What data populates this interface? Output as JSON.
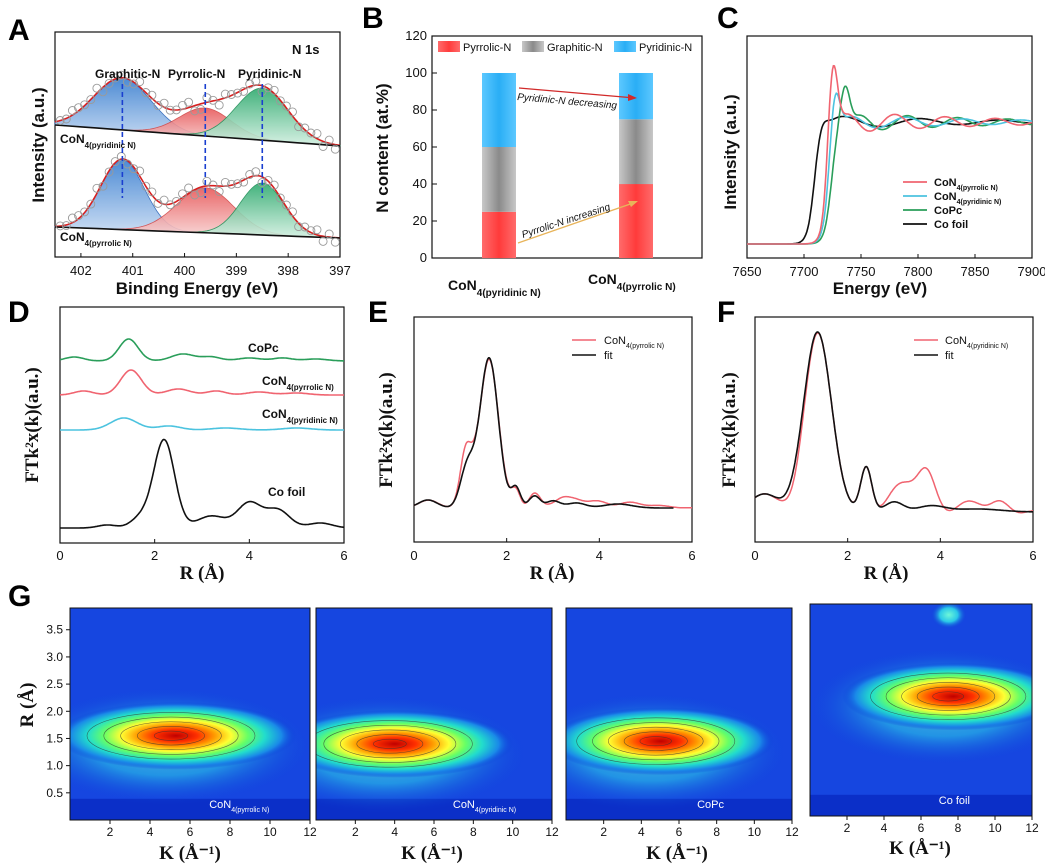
{
  "panels": {
    "A": {
      "letter": "A",
      "title": "N 1s",
      "xlabel": "Binding Energy (eV)",
      "ylabel": "Intensity (a.u.)",
      "xticks": [
        "402",
        "401",
        "400",
        "399",
        "398",
        "397"
      ],
      "peak_labels": [
        "Graphitic-N",
        "Pyrrolic-N",
        "Pyridinic-N"
      ],
      "sample_top": {
        "base": "CoN",
        "sub": "4(pyridinic N)"
      },
      "sample_bottom": {
        "base": "CoN",
        "sub": "4(pyrrolic N)"
      }
    },
    "B": {
      "letter": "B",
      "ylabel": "N content (at.%)",
      "yticks": [
        "0",
        "20",
        "40",
        "60",
        "80",
        "100",
        "120"
      ],
      "legend": [
        "Pyrrolic-N",
        "Graphitic-N",
        "Pyridinic-N"
      ],
      "annotation_top": "Pyridinic-N decreasing",
      "annotation_bottom": "Pyrrolic-N increasing",
      "cat1": {
        "base": "CoN",
        "sub": "4(pyridinic N)"
      },
      "cat2": {
        "base": "CoN",
        "sub": "4(pyrrolic N)"
      }
    },
    "C": {
      "letter": "C",
      "xlabel": "Energy (eV)",
      "ylabel": "Intensity (a.u.)",
      "xticks": [
        "7650",
        "7700",
        "7750",
        "7800",
        "7850",
        "7900"
      ],
      "legend": [
        {
          "base": "CoN",
          "sub": "4(pyrrolic N)",
          "color": "#f06470"
        },
        {
          "base": "CoN",
          "sub": "4(pyridinic N)",
          "color": "#4cc3df"
        },
        {
          "base": "CoPc",
          "sub": "",
          "color": "#2a9e5a"
        },
        {
          "base": "Co foil",
          "sub": "",
          "color": "#111111"
        }
      ]
    },
    "D": {
      "letter": "D",
      "xlabel": "R (Å)",
      "ylabel": "FTk²x(k)(a.u.)",
      "xticks": [
        "0",
        "2",
        "4",
        "6"
      ],
      "labels": [
        {
          "base": "CoPc",
          "sub": ""
        },
        {
          "base": "CoN",
          "sub": "4(pyrrolic N)"
        },
        {
          "base": "CoN",
          "sub": "4(pyridinic N)"
        },
        {
          "base": "Co foil",
          "sub": ""
        }
      ]
    },
    "E": {
      "letter": "E",
      "xlabel": "R (Å)",
      "ylabel": "FTk²x(k)(a.u.)",
      "xticks": [
        "0",
        "2",
        "4",
        "6"
      ],
      "legend": [
        {
          "base": "CoN",
          "sub": "4(pyrrolic N)"
        },
        {
          "base": "fit",
          "sub": ""
        }
      ]
    },
    "F": {
      "letter": "F",
      "xlabel": "R (Å)",
      "ylabel": "FTk²x(k)(a.u.)",
      "xticks": [
        "0",
        "2",
        "4",
        "6"
      ],
      "legend": [
        {
          "base": "CoN",
          "sub": "4(pyridinic N)"
        },
        {
          "base": "fit",
          "sub": ""
        }
      ]
    },
    "G": {
      "letter": "G",
      "xlabel": "K (Å⁻¹)",
      "ylabel": "R (Å)",
      "xticks": [
        "2",
        "4",
        "6",
        "8",
        "10",
        "12"
      ],
      "yticks": [
        "0.5",
        "1.0",
        "1.5",
        "2.0",
        "2.5",
        "3.0",
        "3.5"
      ],
      "maps": [
        {
          "base": "CoN",
          "sub": "4(pyrrolic N)"
        },
        {
          "base": "CoN",
          "sub": "4(pyridinic N)"
        },
        {
          "base": "CoPc",
          "sub": ""
        },
        {
          "base": "Co foil",
          "sub": ""
        }
      ]
    }
  },
  "chart_data": [
    {
      "type": "line",
      "panel": "A",
      "xlabel": "Binding Energy (eV)",
      "ylabel": "Intensity (a.u.)",
      "xlim": [
        402.5,
        397
      ],
      "series": [
        {
          "name": "Graphitic-N",
          "peak_center": 401.2
        },
        {
          "name": "Pyrrolic-N",
          "peak_center": 399.6
        },
        {
          "name": "Pyridinic-N",
          "peak_center": 398.5
        }
      ]
    },
    {
      "type": "bar",
      "panel": "B",
      "categories": [
        "CoN4(pyridinic N)",
        "CoN4(pyrrolic N)"
      ],
      "ylabel": "N content (at.%)",
      "ylim": [
        0,
        120
      ],
      "series": [
        {
          "name": "Pyrrolic-N",
          "values": [
            25,
            40
          ]
        },
        {
          "name": "Graphitic-N",
          "values": [
            35,
            35
          ]
        },
        {
          "name": "Pyridinic-N",
          "values": [
            40,
            25
          ]
        }
      ]
    },
    {
      "type": "line",
      "panel": "C",
      "xlabel": "Energy (eV)",
      "xlim": [
        7650,
        7900
      ],
      "series": [
        {
          "name": "CoN4(pyrrolic N)",
          "edge": 7722,
          "white_line": 7725
        },
        {
          "name": "CoN4(pyridinic N)",
          "edge": 7722,
          "white_line": 7726
        },
        {
          "name": "CoPc",
          "edge": 7724,
          "white_line": 7735
        },
        {
          "name": "Co foil",
          "edge": 7709
        }
      ]
    },
    {
      "type": "line",
      "panel": "D",
      "xlabel": "R (Å)",
      "xlim": [
        0,
        6
      ],
      "series": [
        {
          "name": "CoPc",
          "main_peak_R": 1.5
        },
        {
          "name": "CoN4(pyrrolic N)",
          "main_peak_R": 1.5
        },
        {
          "name": "CoN4(pyridinic N)",
          "main_peak_R": 1.4
        },
        {
          "name": "Co foil",
          "main_peak_R": 2.2
        }
      ]
    },
    {
      "type": "line",
      "panel": "E",
      "xlabel": "R (Å)",
      "xlim": [
        0,
        6
      ],
      "series": [
        {
          "name": "CoN4(pyrrolic N)",
          "main_peak_R": 1.6
        },
        {
          "name": "fit",
          "main_peak_R": 1.6
        }
      ]
    },
    {
      "type": "line",
      "panel": "F",
      "xlabel": "R (Å)",
      "xlim": [
        0,
        6
      ],
      "series": [
        {
          "name": "CoN4(pyridinic N)",
          "main_peak_R": 1.35
        },
        {
          "name": "fit",
          "main_peak_R": 1.35
        }
      ]
    },
    {
      "type": "heatmap",
      "panel": "G",
      "xlabel": "K (Å⁻¹)",
      "ylabel": "R (Å)",
      "xlim": [
        0,
        12
      ],
      "ylim": [
        0,
        3.9
      ],
      "maxima": [
        {
          "name": "CoN4(pyrrolic N)",
          "k": 4.8,
          "R": 1.55
        },
        {
          "name": "CoN4(pyridinic N)",
          "k": 3.5,
          "R": 1.4
        },
        {
          "name": "CoPc",
          "k": 4.5,
          "R": 1.45
        },
        {
          "name": "Co foil",
          "k": 7.2,
          "R": 2.2
        }
      ]
    }
  ]
}
